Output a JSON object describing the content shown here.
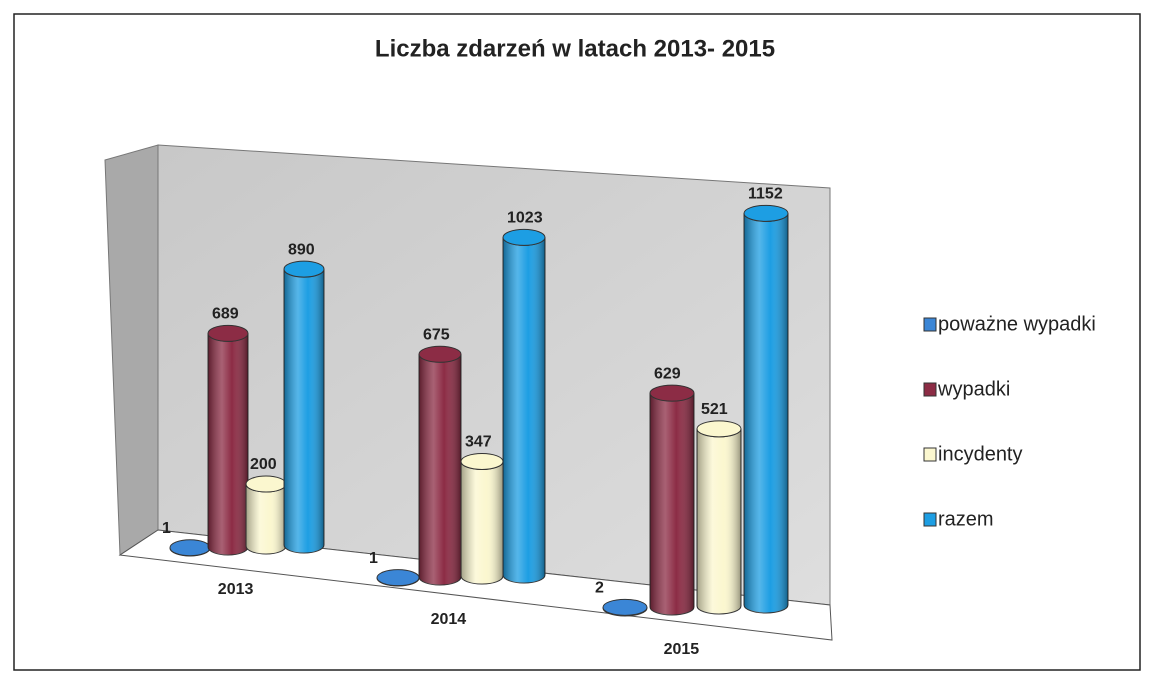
{
  "chart_data": {
    "type": "bar3d",
    "title": "Liczba zdarzeń w latach 2013- 2015",
    "categories": [
      "2013",
      "2014",
      "2015"
    ],
    "series": [
      {
        "name": "poważne wypadki",
        "color": "#3b86d6",
        "values": [
          1,
          1,
          2
        ]
      },
      {
        "name": "wypadki",
        "color": "#8c2c45",
        "values": [
          689,
          675,
          629
        ]
      },
      {
        "name": "incydenty",
        "color": "#fbf7cf",
        "values": [
          200,
          347,
          521
        ]
      },
      {
        "name": "razem",
        "color": "#1d9ee3",
        "values": [
          890,
          1023,
          1152
        ]
      }
    ],
    "legend": "right"
  }
}
